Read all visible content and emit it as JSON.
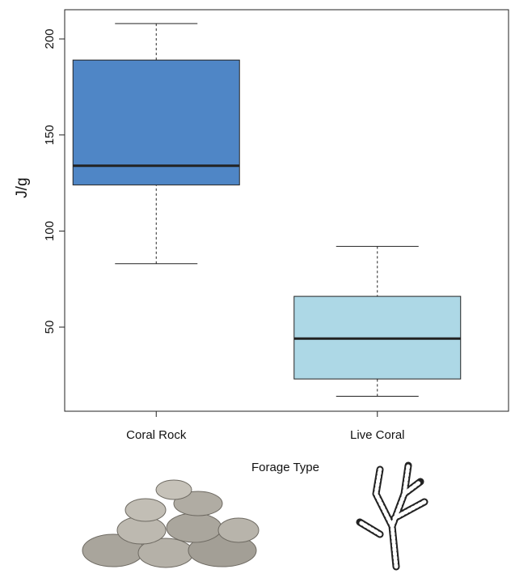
{
  "chart_data": {
    "type": "box",
    "x_label": "Forage Type",
    "y_label": "J/g",
    "categories": [
      "Coral Rock",
      "Live Coral"
    ],
    "boxes": [
      {
        "min": 83,
        "q1": 124,
        "median": 134,
        "q3": 189,
        "max": 208,
        "color": "#4f86c6"
      },
      {
        "min": 14,
        "q1": 23,
        "median": 44,
        "q3": 66,
        "max": 92,
        "color": "#add8e6"
      }
    ],
    "ylim": [
      6.2,
      215.2
    ],
    "yticks": [
      50,
      100,
      150,
      200
    ]
  }
}
